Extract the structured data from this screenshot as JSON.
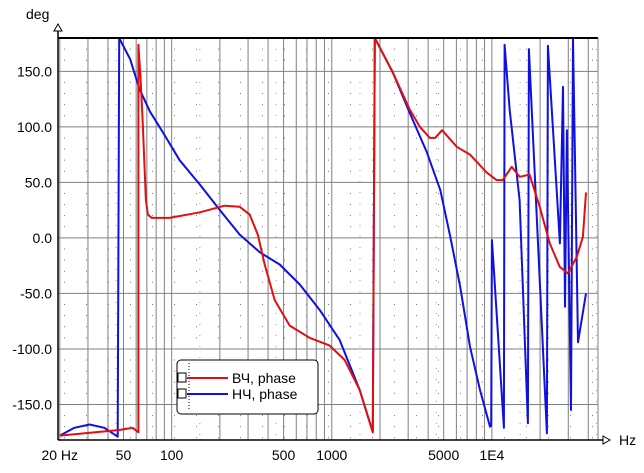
{
  "chart_data": {
    "type": "line",
    "title": "",
    "xlabel": "Hz",
    "ylabel": "deg",
    "xscale": "log",
    "xlim": [
      19.5,
      46000
    ],
    "ylim": [
      -182,
      180
    ],
    "grid": true,
    "legend_position": "bottom-left-center",
    "x_ticks": [
      {
        "value": 20,
        "label": "20 Hz"
      },
      {
        "value": 50,
        "label": "50"
      },
      {
        "value": 100,
        "label": "100"
      },
      {
        "value": 500,
        "label": "500"
      },
      {
        "value": 1000,
        "label": "1000"
      },
      {
        "value": 5000,
        "label": "5000"
      },
      {
        "value": 10000,
        "label": "1E4"
      }
    ],
    "y_ticks": [
      {
        "value": 150,
        "label": "150.0"
      },
      {
        "value": 100,
        "label": "100.0"
      },
      {
        "value": 50,
        "label": "50.0"
      },
      {
        "value": 0,
        "label": "0.0"
      },
      {
        "value": -50,
        "label": "-50.0"
      },
      {
        "value": -100,
        "label": "-100.0"
      },
      {
        "value": -150,
        "label": "-150.0"
      }
    ],
    "series": [
      {
        "name": "ВЧ, phase",
        "color": "#e01010",
        "points": [
          [
            20,
            -178
          ],
          [
            47,
            -173
          ],
          [
            57,
            -171
          ],
          [
            62,
            -175
          ],
          [
            62,
            174
          ],
          [
            64,
            143
          ],
          [
            66,
            102
          ],
          [
            69,
            34
          ],
          [
            71,
            21
          ],
          [
            75,
            18
          ],
          [
            97,
            18
          ],
          [
            150,
            23
          ],
          [
            214,
            29
          ],
          [
            266,
            28
          ],
          [
            307,
            21
          ],
          [
            345,
            3
          ],
          [
            381,
            -24
          ],
          [
            440,
            -56
          ],
          [
            546,
            -79
          ],
          [
            727,
            -90
          ],
          [
            970,
            -97
          ],
          [
            1205,
            -110
          ],
          [
            1495,
            -137
          ],
          [
            1805,
            -175
          ],
          [
            1857,
            180
          ],
          [
            2404,
            149
          ],
          [
            3060,
            116
          ],
          [
            3548,
            100
          ],
          [
            4100,
            90
          ],
          [
            4420,
            90
          ],
          [
            4890,
            97
          ],
          [
            6040,
            82
          ],
          [
            7300,
            75
          ],
          [
            9270,
            59
          ],
          [
            10700,
            52
          ],
          [
            11700,
            52
          ],
          [
            13300,
            64
          ],
          [
            14900,
            55
          ],
          [
            17200,
            57
          ],
          [
            19900,
            28
          ],
          [
            23000,
            -5
          ],
          [
            26500,
            -26
          ],
          [
            29800,
            -32
          ],
          [
            33900,
            -17
          ],
          [
            37000,
            1
          ],
          [
            38700,
            41
          ]
        ]
      },
      {
        "name": "НЧ, phase",
        "color": "#1010e0",
        "points": [
          [
            20,
            -178
          ],
          [
            24.7,
            -171
          ],
          [
            30.7,
            -168
          ],
          [
            38,
            -171
          ],
          [
            46,
            -179
          ],
          [
            47,
            180
          ],
          [
            55,
            161
          ],
          [
            63,
            134
          ],
          [
            73,
            114
          ],
          [
            90,
            93
          ],
          [
            112,
            70
          ],
          [
            150,
            48
          ],
          [
            200,
            25
          ],
          [
            266,
            3
          ],
          [
            355,
            -13
          ],
          [
            473,
            -24
          ],
          [
            631,
            -42
          ],
          [
            842,
            -65
          ],
          [
            1120,
            -92
          ],
          [
            1495,
            -137
          ],
          [
            1805,
            -175
          ],
          [
            1857,
            180
          ],
          [
            2404,
            149
          ],
          [
            3060,
            113
          ],
          [
            3930,
            77
          ],
          [
            4760,
            43
          ],
          [
            5500,
            1
          ],
          [
            6340,
            -44
          ],
          [
            7300,
            -98
          ],
          [
            8430,
            -137
          ],
          [
            9730,
            -170
          ],
          [
            9900,
            -169
          ],
          [
            10000,
            -2
          ],
          [
            10300,
            -29
          ],
          [
            11890,
            -171
          ],
          [
            12000,
            174
          ],
          [
            12900,
            116
          ],
          [
            14900,
            34
          ],
          [
            16790,
            -167
          ],
          [
            17030,
            170
          ],
          [
            22070,
            -176
          ],
          [
            22390,
            173
          ],
          [
            26600,
            -5
          ],
          [
            27800,
            136
          ],
          [
            28600,
            -62
          ],
          [
            29400,
            97
          ],
          [
            31200,
            -155
          ],
          [
            32100,
            179
          ],
          [
            34500,
            -94
          ],
          [
            38700,
            -50
          ]
        ]
      }
    ]
  }
}
